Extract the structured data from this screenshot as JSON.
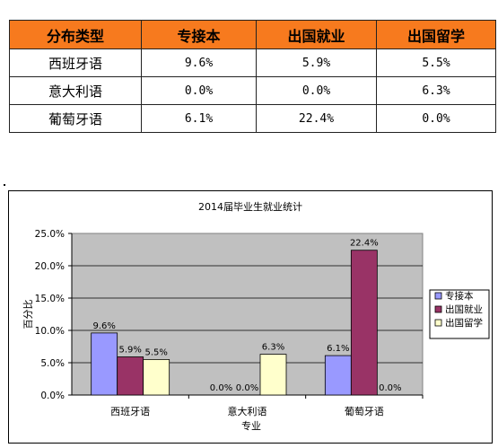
{
  "table": {
    "headers": [
      "分布类型",
      "专接本",
      "出国就业",
      "出国留学"
    ],
    "rows": [
      {
        "label": "西班牙语",
        "values": [
          "9.6%",
          "5.9%",
          "5.5%"
        ]
      },
      {
        "label": "意大利语",
        "values": [
          "0.0%",
          "0.0%",
          "6.3%"
        ]
      },
      {
        "label": "葡萄牙语",
        "values": [
          "6.1%",
          "22.4%",
          "0.0%"
        ]
      }
    ],
    "header_color": "#f77a1e"
  },
  "chart_data": {
    "type": "bar",
    "title": "2014届毕业生就业统计",
    "xlabel": "专业",
    "ylabel": "百分比",
    "categories": [
      "西班牙语",
      "意大利语",
      "葡萄牙语"
    ],
    "ylim": [
      0,
      25
    ],
    "yticks": [
      "0.0%",
      "5.0%",
      "10.0%",
      "15.0%",
      "20.0%",
      "25.0%"
    ],
    "grid": true,
    "legend": "right",
    "series": [
      {
        "name": "专接本",
        "values": [
          9.6,
          0.0,
          6.1
        ],
        "labels": [
          "9.6%",
          "0.0%",
          "6.1%"
        ],
        "color": "#9999ff"
      },
      {
        "name": "出国就业",
        "values": [
          5.9,
          0.0,
          22.4
        ],
        "labels": [
          "5.9%",
          "0.0%",
          "22.4%"
        ],
        "color": "#993366"
      },
      {
        "name": "出国留学",
        "values": [
          5.5,
          6.3,
          0.0
        ],
        "labels": [
          "5.5%",
          "6.3%",
          "0.0%"
        ],
        "color": "#ffffcc"
      }
    ],
    "plot_background": "#c0c0c0"
  }
}
